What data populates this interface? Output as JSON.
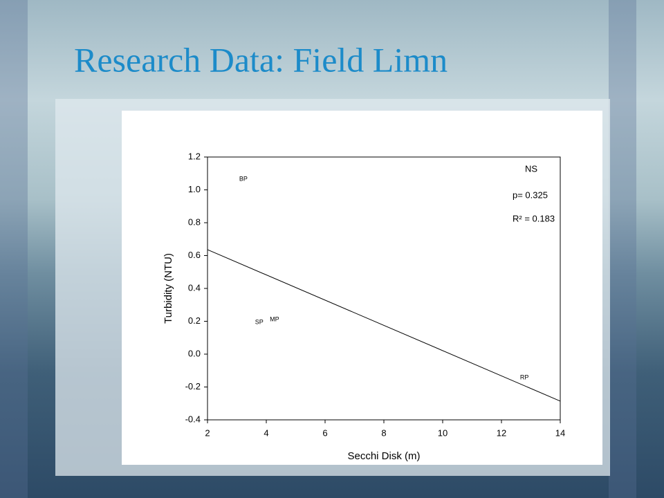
{
  "chart_data": {
    "type": "scatter",
    "title": "Research Data: Field Limn",
    "x_label": "Secchi Disk (m)",
    "y_label": "Turbidity (NTU)",
    "series": [
      {
        "labels": [
          "BP",
          "SP",
          "MP",
          "RP"
        ],
        "x": [
          3.22,
          3.76,
          4.28,
          12.78
        ],
        "values": [
          1.065,
          0.194,
          0.21,
          -0.143
        ],
        "color": "#000000"
      }
    ],
    "trendline": {
      "x": [
        2,
        14
      ],
      "values": [
        0.636,
        -0.286
      ],
      "color": "#000000"
    },
    "annotations": [
      "NS",
      "p= 0.325",
      "R² = 0.183"
    ],
    "xlim": [
      2,
      14
    ],
    "ylim": [
      -0.4,
      1.2
    ],
    "xticks": [
      2,
      4,
      6,
      8,
      10,
      12,
      14
    ],
    "yticks": [
      -0.4,
      -0.2,
      {
        "value": 0,
        "label": "0.0"
      },
      0.2,
      0.4,
      0.6,
      0.8,
      {
        "value": 1,
        "label": "1.0"
      },
      1.2
    ],
    "grid": false
  }
}
